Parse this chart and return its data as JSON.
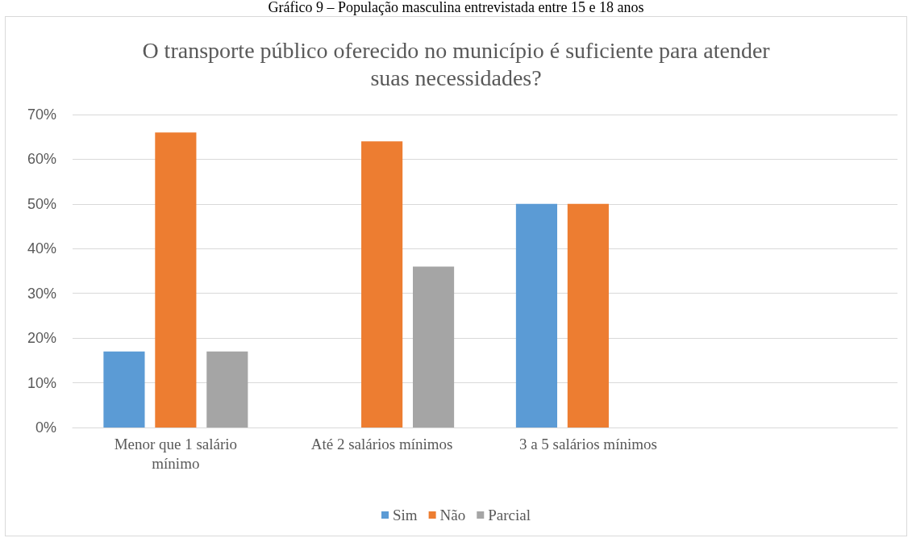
{
  "chart_data": {
    "type": "bar",
    "title": "O transporte público oferecido no município é suficiente para atender\nsuas necessidades?",
    "annotations": [
      "Gráfico 9 – População masculina entrevistada entre 15 e 18 anos"
    ],
    "categories": [
      "Menor que 1 salário\nmínimo",
      "Até 2 salários mínimos",
      "3 a 5 salários mínimos",
      null
    ],
    "series": [
      {
        "name": "Sim",
        "color": "#5b9bd5",
        "values": [
          17,
          0,
          50,
          null
        ]
      },
      {
        "name": "Não",
        "color": "#ed7d31",
        "values": [
          66,
          64,
          50,
          null
        ]
      },
      {
        "name": "Parcial",
        "color": "#a5a5a5",
        "values": [
          17,
          36,
          0,
          null
        ]
      }
    ],
    "ylim": [
      0,
      70
    ],
    "yticks": [
      {
        "value": 0,
        "label": "0%"
      },
      {
        "value": 10,
        "label": "10%"
      },
      {
        "value": 20,
        "label": "20%"
      },
      {
        "value": 30,
        "label": "30%"
      },
      {
        "value": 40,
        "label": "40%"
      },
      {
        "value": 50,
        "label": "50%"
      },
      {
        "value": 60,
        "label": "60%"
      },
      {
        "value": 70,
        "label": "70%"
      }
    ],
    "grid": "y",
    "legend": "bottom"
  }
}
